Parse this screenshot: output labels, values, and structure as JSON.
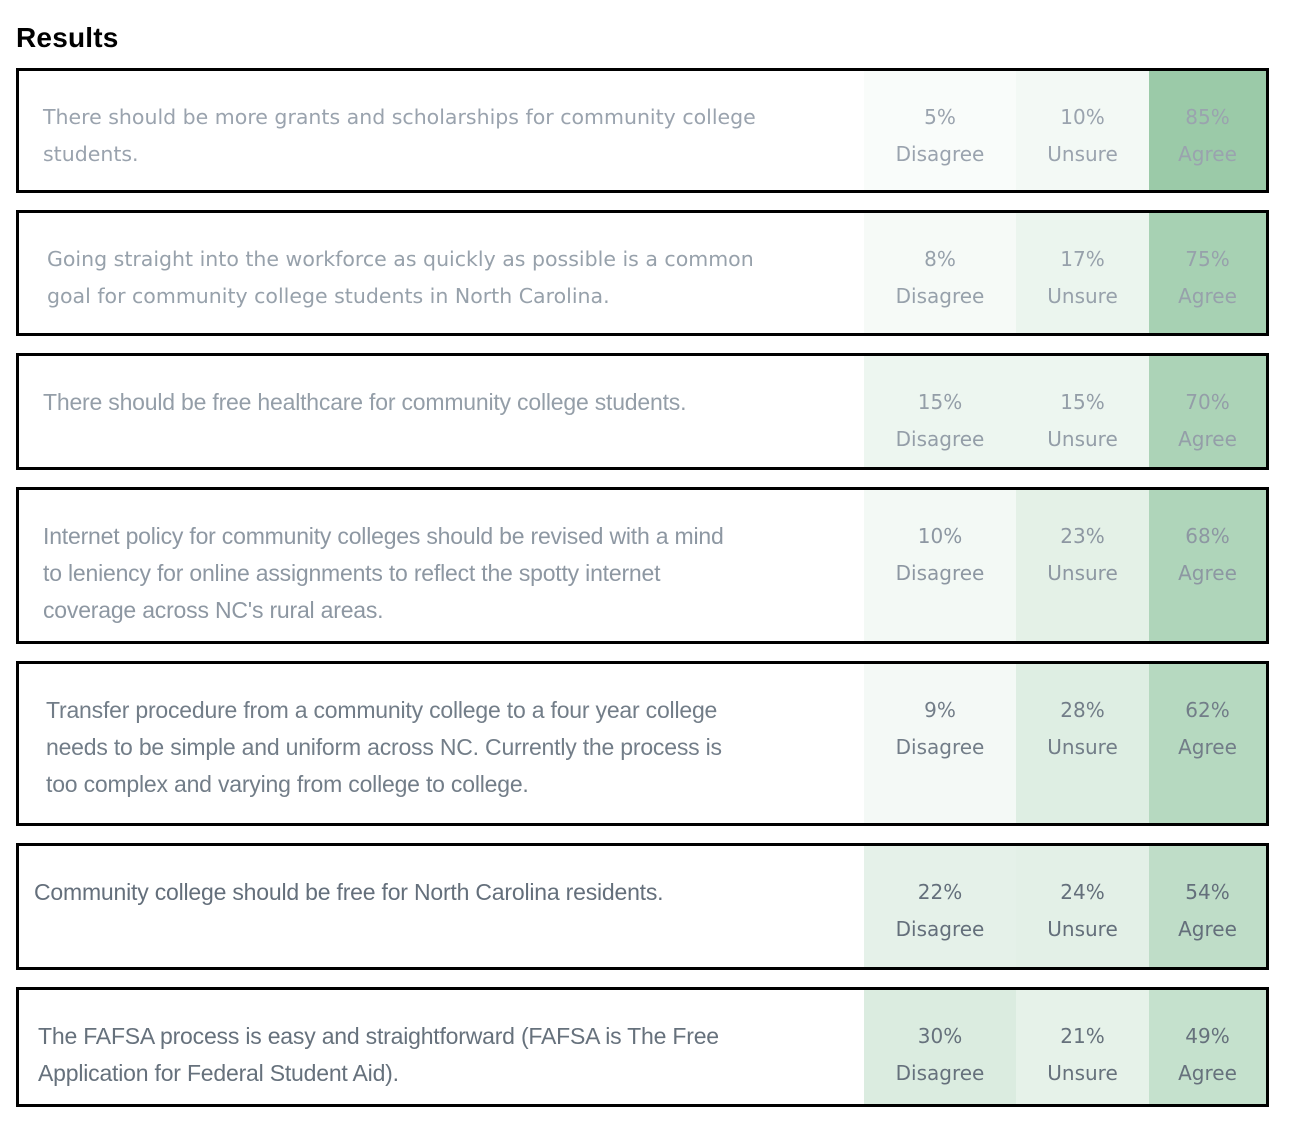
{
  "title": "Results",
  "palette": {
    "accent_green": "#89c199",
    "card_border": "#000000",
    "title_color": "#000000",
    "page_background": "#ffffff"
  },
  "cards": [
    {
      "statement": "There should be more grants and scholarships for community college\nstudents.",
      "responses": [
        {
          "pct": 5,
          "value": "5%",
          "label": "Disagree"
        },
        {
          "pct": 10,
          "value": "10%",
          "label": "Unsure"
        },
        {
          "pct": 85,
          "value": "85%",
          "label": "Agree"
        }
      ]
    },
    {
      "statement": "Going straight into the workforce as quickly as possible is a common\ngoal for community college students in North Carolina.",
      "responses": [
        {
          "pct": 8,
          "value": "8%",
          "label": "Disagree"
        },
        {
          "pct": 17,
          "value": "17%",
          "label": "Unsure"
        },
        {
          "pct": 75,
          "value": "75%",
          "label": "Agree"
        }
      ]
    },
    {
      "statement": "There should be free healthcare for community college students.",
      "responses": [
        {
          "pct": 15,
          "value": "15%",
          "label": "Disagree"
        },
        {
          "pct": 15,
          "value": "15%",
          "label": "Unsure"
        },
        {
          "pct": 70,
          "value": "70%",
          "label": "Agree"
        }
      ]
    },
    {
      "statement": "Internet policy for community colleges should be revised with a mind\nto leniency for online assignments to reflect the spotty internet\ncoverage across NC's rural areas.",
      "responses": [
        {
          "pct": 10,
          "value": "10%",
          "label": "Disagree"
        },
        {
          "pct": 23,
          "value": "23%",
          "label": "Unsure"
        },
        {
          "pct": 68,
          "value": "68%",
          "label": "Agree"
        }
      ]
    },
    {
      "statement": "Transfer procedure from a community college to a four year college\nneeds to be simple and uniform across NC. Currently the process is\ntoo complex and varying from college to college.",
      "responses": [
        {
          "pct": 9,
          "value": "9%",
          "label": "Disagree"
        },
        {
          "pct": 28,
          "value": "28%",
          "label": "Unsure"
        },
        {
          "pct": 62,
          "value": "62%",
          "label": "Agree"
        }
      ]
    },
    {
      "statement": "Community college should be free for North Carolina residents.",
      "responses": [
        {
          "pct": 22,
          "value": "22%",
          "label": "Disagree"
        },
        {
          "pct": 24,
          "value": "24%",
          "label": "Unsure"
        },
        {
          "pct": 54,
          "value": "54%",
          "label": "Agree"
        }
      ]
    },
    {
      "statement": "The FAFSA process is easy and straightforward (FAFSA is The Free\nApplication for Federal Student Aid).",
      "responses": [
        {
          "pct": 30,
          "value": "30%",
          "label": "Disagree"
        },
        {
          "pct": 21,
          "value": "21%",
          "label": "Unsure"
        },
        {
          "pct": 49,
          "value": "49%",
          "label": "Agree"
        }
      ]
    }
  ]
}
